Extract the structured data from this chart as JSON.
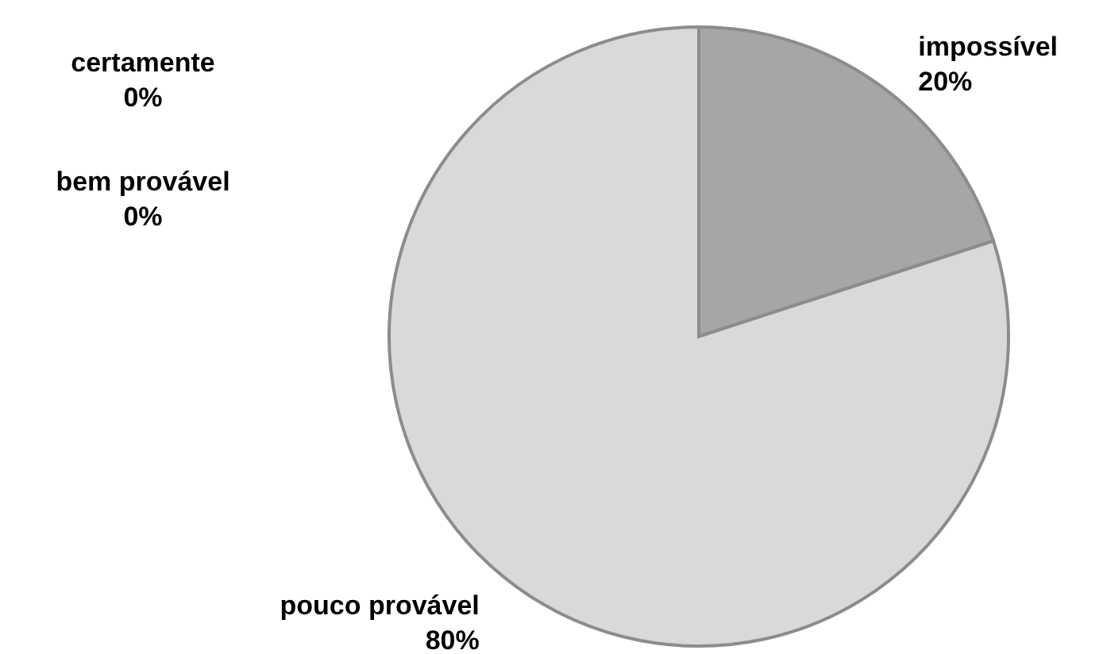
{
  "chart_data": {
    "type": "pie",
    "categories": [
      "impossível",
      "pouco provável",
      "bem provável",
      "certamente"
    ],
    "values": [
      20,
      80,
      0,
      0
    ],
    "value_labels": [
      "20%",
      "80%",
      "0%",
      "0%"
    ],
    "colors": [
      "#a6a6a6",
      "#d9d9d9",
      "#bfbfbf",
      "#f2f2f2"
    ]
  }
}
